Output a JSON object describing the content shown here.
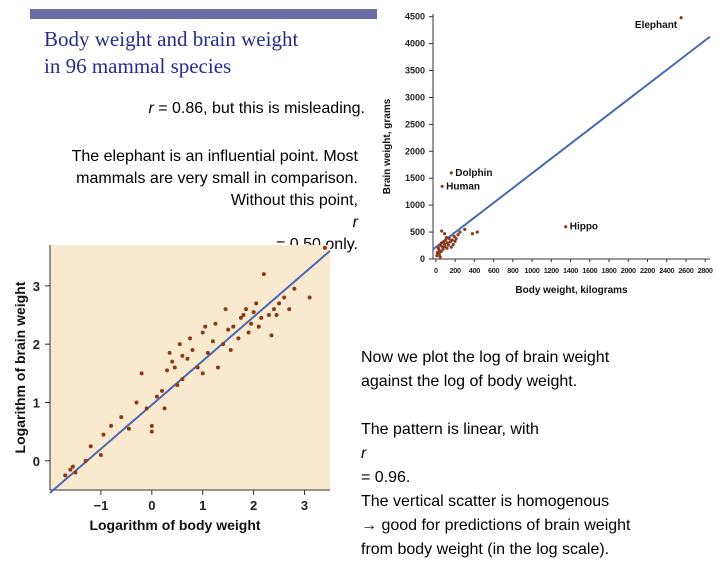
{
  "slide": {
    "title_line1": "Body weight and brain weight",
    "title_line2": "in 96 mammal species",
    "note_r_prefix": "r",
    "note_r_rest": " = 0.86, but this is misleading.",
    "influential_line1": "The elephant is an influential point. Most",
    "influential_line2": "mammals are very small in comparison.",
    "influential_line3_prefix": "Without this point, ",
    "influential_line3_r": "r",
    "influential_line3_rest": " = 0.50 only.",
    "log_note_line1": "Now we plot the log of brain weight",
    "log_note_line2": "against the log of body weight.",
    "pattern_line1_prefix": "The pattern is linear, with ",
    "pattern_line1_r": "r",
    "pattern_line1_rest": " = 0.96.",
    "pattern_line2": "The vertical scatter is homogenous",
    "pattern_line3": "→ good for predictions of brain weight",
    "pattern_line4": "from body weight (in the log scale)."
  },
  "colors": {
    "accent_bar": "#6b6ba6",
    "title_text": "#2a2a8c",
    "plot_background": "#f8e9cf",
    "regression_line": "#4a69b0",
    "points": "#8b3a1a"
  },
  "chart_data": [
    {
      "type": "scatter",
      "xlabel": "Body  weight, kilograms",
      "ylabel": "Brain weight, grams",
      "xlim": [
        -30,
        2850
      ],
      "ylim": [
        0,
        4550
      ],
      "x_ticks": [
        "0",
        "200",
        "400",
        "600",
        "800",
        "1000",
        "1200",
        "1400",
        "1600",
        "1800",
        "2000",
        "2200",
        "2400",
        "2600",
        "2800"
      ],
      "y_ticks": [
        "0",
        "500",
        "1000",
        "1500",
        "2000",
        "2500",
        "3000",
        "3500",
        "4000",
        "4500"
      ],
      "grid": false,
      "regression_line": {
        "x": [
          -30,
          2850
        ],
        "y": [
          180,
          4130
        ]
      },
      "annotations": [
        {
          "label": "Elephant",
          "x": 2550,
          "y": 4480
        },
        {
          "label": "Dolphin",
          "x": 160,
          "y": 1600
        },
        {
          "label": "Human",
          "x": 65,
          "y": 1350
        },
        {
          "label": "Hippo",
          "x": 1350,
          "y": 600
        }
      ],
      "points": [
        {
          "x": 2550,
          "y": 4480
        },
        {
          "x": 160,
          "y": 1600
        },
        {
          "x": 65,
          "y": 1350
        },
        {
          "x": 1350,
          "y": 600
        },
        {
          "x": 10,
          "y": 60
        },
        {
          "x": 20,
          "y": 100
        },
        {
          "x": 30,
          "y": 180
        },
        {
          "x": 40,
          "y": 150
        },
        {
          "x": 50,
          "y": 250
        },
        {
          "x": 60,
          "y": 300
        },
        {
          "x": 70,
          "y": 220
        },
        {
          "x": 80,
          "y": 320
        },
        {
          "x": 90,
          "y": 280
        },
        {
          "x": 100,
          "y": 350
        },
        {
          "x": 110,
          "y": 400
        },
        {
          "x": 120,
          "y": 300
        },
        {
          "x": 130,
          "y": 260
        },
        {
          "x": 150,
          "y": 320
        },
        {
          "x": 170,
          "y": 350
        },
        {
          "x": 190,
          "y": 420
        },
        {
          "x": 210,
          "y": 380
        },
        {
          "x": 230,
          "y": 450
        },
        {
          "x": 60,
          "y": 520
        },
        {
          "x": 90,
          "y": 470
        },
        {
          "x": 140,
          "y": 380
        },
        {
          "x": 180,
          "y": 270
        },
        {
          "x": 250,
          "y": 500
        },
        {
          "x": 300,
          "y": 550
        },
        {
          "x": 380,
          "y": 470
        },
        {
          "x": 430,
          "y": 500
        },
        {
          "x": 35,
          "y": 90
        },
        {
          "x": 55,
          "y": 140
        },
        {
          "x": 25,
          "y": 210
        },
        {
          "x": 75,
          "y": 180
        },
        {
          "x": 95,
          "y": 230
        },
        {
          "x": 15,
          "y": 120
        },
        {
          "x": 45,
          "y": 40
        },
        {
          "x": 115,
          "y": 200
        },
        {
          "x": 160,
          "y": 220
        },
        {
          "x": 200,
          "y": 330
        }
      ]
    },
    {
      "type": "scatter",
      "xlabel": "Logarithm of body weight",
      "ylabel": "Logarithm of brain weight",
      "xlim": [
        -2,
        3.5
      ],
      "ylim": [
        -0.5,
        3.7
      ],
      "x_ticks": [
        "−1",
        "0",
        "1",
        "2",
        "3"
      ],
      "y_ticks": [
        "0",
        "1",
        "2",
        "3"
      ],
      "grid": false,
      "regression_line": {
        "x": [
          -2.0,
          3.5
        ],
        "y": [
          -0.55,
          3.6
        ]
      },
      "points": [
        {
          "x": -1.6,
          "y": -0.15
        },
        {
          "x": -1.5,
          "y": -0.2
        },
        {
          "x": -1.55,
          "y": -0.1
        },
        {
          "x": -1.7,
          "y": -0.25
        },
        {
          "x": -1.3,
          "y": 0.0
        },
        {
          "x": -1.2,
          "y": 0.25
        },
        {
          "x": -1.0,
          "y": 0.1
        },
        {
          "x": -0.95,
          "y": 0.45
        },
        {
          "x": -0.8,
          "y": 0.6
        },
        {
          "x": -0.6,
          "y": 0.75
        },
        {
          "x": -0.45,
          "y": 0.55
        },
        {
          "x": -0.3,
          "y": 1.0
        },
        {
          "x": -0.2,
          "y": 1.5
        },
        {
          "x": 0.0,
          "y": 0.5
        },
        {
          "x": 0.0,
          "y": 0.6
        },
        {
          "x": 0.2,
          "y": 1.2
        },
        {
          "x": 0.3,
          "y": 1.55
        },
        {
          "x": 0.35,
          "y": 1.85
        },
        {
          "x": 0.4,
          "y": 1.7
        },
        {
          "x": 0.5,
          "y": 1.3
        },
        {
          "x": 0.55,
          "y": 2.0
        },
        {
          "x": 0.6,
          "y": 1.4
        },
        {
          "x": 0.7,
          "y": 1.75
        },
        {
          "x": 0.8,
          "y": 1.9
        },
        {
          "x": 0.9,
          "y": 1.6
        },
        {
          "x": 1.0,
          "y": 1.5
        },
        {
          "x": 1.05,
          "y": 2.3
        },
        {
          "x": 1.1,
          "y": 1.85
        },
        {
          "x": 1.2,
          "y": 2.05
        },
        {
          "x": 1.3,
          "y": 1.6
        },
        {
          "x": 1.4,
          "y": 2.0
        },
        {
          "x": 1.45,
          "y": 2.6
        },
        {
          "x": 1.5,
          "y": 2.25
        },
        {
          "x": 1.6,
          "y": 2.3
        },
        {
          "x": 1.7,
          "y": 2.1
        },
        {
          "x": 1.75,
          "y": 2.45
        },
        {
          "x": 1.8,
          "y": 2.5
        },
        {
          "x": 1.85,
          "y": 2.6
        },
        {
          "x": 1.9,
          "y": 2.2
        },
        {
          "x": 1.95,
          "y": 2.35
        },
        {
          "x": 2.0,
          "y": 2.55
        },
        {
          "x": 2.05,
          "y": 2.7
        },
        {
          "x": 2.1,
          "y": 2.3
        },
        {
          "x": 2.15,
          "y": 2.45
        },
        {
          "x": 2.2,
          "y": 3.2
        },
        {
          "x": 2.3,
          "y": 2.5
        },
        {
          "x": 2.35,
          "y": 2.15
        },
        {
          "x": 2.4,
          "y": 2.6
        },
        {
          "x": 2.45,
          "y": 2.5
        },
        {
          "x": 2.5,
          "y": 2.7
        },
        {
          "x": 2.6,
          "y": 2.8
        },
        {
          "x": 2.7,
          "y": 2.6
        },
        {
          "x": 2.8,
          "y": 2.95
        },
        {
          "x": 3.1,
          "y": 2.8
        },
        {
          "x": 3.4,
          "y": 3.65
        },
        {
          "x": 0.1,
          "y": 1.1
        },
        {
          "x": -0.1,
          "y": 0.9
        },
        {
          "x": 0.45,
          "y": 1.6
        },
        {
          "x": 1.0,
          "y": 2.2
        },
        {
          "x": 1.25,
          "y": 2.35
        },
        {
          "x": 1.55,
          "y": 1.9
        },
        {
          "x": 0.25,
          "y": 0.9
        },
        {
          "x": 0.6,
          "y": 1.8
        },
        {
          "x": 0.75,
          "y": 2.1
        }
      ]
    }
  ]
}
